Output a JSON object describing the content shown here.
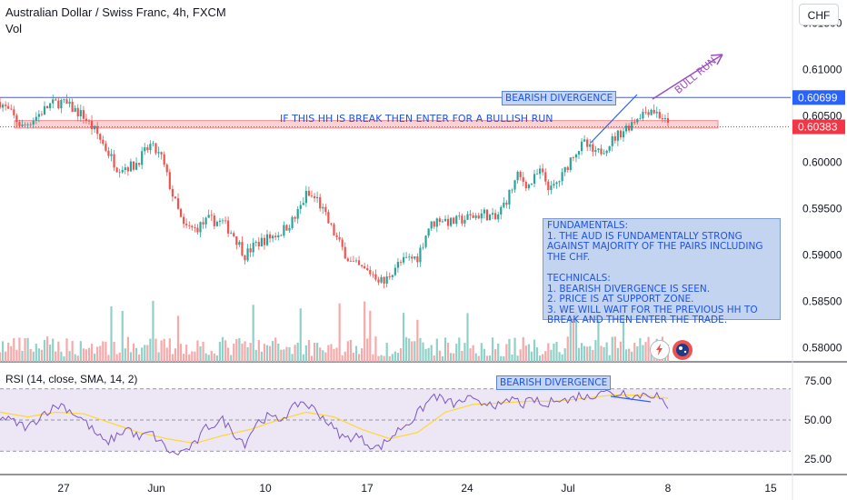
{
  "header": {
    "title": "Australian Dollar / Swiss Franc, 4h, FXCM",
    "volume_label": "Vol",
    "rsi_label": "RSI (14, close, SMA, 14, 2)",
    "currency_button": "CHF"
  },
  "annotations": {
    "bearish_divergence_price": "BEARISH DIVERGENCE",
    "bearish_divergence_rsi": "BEARISH DIVERGENCE",
    "hh_note": "IF THIS HH IS BREAK THEN ENTER FOR A BULLISH RUN",
    "bull_run": "BULL RUN",
    "notes": "FUNDAMENTALS:\n1. THE AUD IS FUNDAMENTALLY STRONG AGAINST MAJORITY OF THE PAIRS INCLUDING THE CHF.\n\nTECHNICALS:\n1. BEARISH DIVERGENCE IS SEEN.\n2. PRICE IS AT SUPPORT ZONE.\n3. WE WILL WAIT FOR THE PREVIOUS HH TO BREAK AND THEN ENTER THE TRADE."
  },
  "colors": {
    "up": "#26a69a",
    "down": "#ef5350",
    "vol_up": "#8fd1c8",
    "vol_down": "#f5a9a8",
    "rsi_line": "#7e57c2",
    "rsi_ma": "#fdd835",
    "rsi_band": "#ece6f5",
    "resistance": "#2962ff",
    "support_zone": "#f8c7c9",
    "annotation": "#1e53e5",
    "arrow": "#9c4fc4",
    "last_price": "#f23645"
  },
  "chart_data": [
    {
      "type": "candlestick",
      "title": "Australian Dollar / Swiss Franc, 4h, FXCM",
      "x_ticks": [
        "27",
        "Jun",
        "10",
        "17",
        "24",
        "Jul",
        "8",
        "15"
      ],
      "y_ticks": [
        0.615,
        0.61,
        0.605,
        0.6,
        0.595,
        0.59,
        0.585,
        0.58
      ],
      "ylim": [
        0.5785,
        0.6175
      ],
      "resistance_level": 0.60699,
      "last_price": 0.60383,
      "support_zone": [
        0.6037,
        0.6045
      ],
      "anchors": [
        [
          0,
          0.6065
        ],
        [
          4,
          0.6052
        ],
        [
          8,
          0.6038
        ],
        [
          12,
          0.6047
        ],
        [
          18,
          0.6062
        ],
        [
          22,
          0.6065
        ],
        [
          26,
          0.6058
        ],
        [
          30,
          0.605
        ],
        [
          35,
          0.603
        ],
        [
          42,
          0.5995
        ],
        [
          48,
          0.5996
        ],
        [
          54,
          0.6018
        ],
        [
          58,
          0.6005
        ],
        [
          62,
          0.5965
        ],
        [
          66,
          0.593
        ],
        [
          70,
          0.5928
        ],
        [
          75,
          0.5938
        ],
        [
          80,
          0.5935
        ],
        [
          84,
          0.5922
        ],
        [
          88,
          0.59
        ],
        [
          92,
          0.5912
        ],
        [
          96,
          0.5918
        ],
        [
          101,
          0.5925
        ],
        [
          106,
          0.594
        ],
        [
          110,
          0.5965
        ],
        [
          114,
          0.596
        ],
        [
          118,
          0.5935
        ],
        [
          122,
          0.5912
        ],
        [
          126,
          0.5892
        ],
        [
          130,
          0.5885
        ],
        [
          134,
          0.588
        ],
        [
          138,
          0.587
        ],
        [
          142,
          0.5888
        ],
        [
          146,
          0.5895
        ],
        [
          150,
          0.5898
        ],
        [
          154,
          0.593
        ],
        [
          158,
          0.594
        ],
        [
          162,
          0.5935
        ],
        [
          168,
          0.594
        ],
        [
          174,
          0.5945
        ],
        [
          178,
          0.5938
        ],
        [
          182,
          0.596
        ],
        [
          186,
          0.5985
        ],
        [
          190,
          0.5975
        ],
        [
          194,
          0.599
        ],
        [
          198,
          0.597
        ],
        [
          202,
          0.5985
        ],
        [
          206,
          0.601
        ],
        [
          210,
          0.602
        ],
        [
          214,
          0.6008
        ],
        [
          218,
          0.6018
        ],
        [
          222,
          0.603
        ],
        [
          226,
          0.604
        ],
        [
          230,
          0.6052
        ],
        [
          234,
          0.6058
        ],
        [
          238,
          0.6048
        ],
        [
          240,
          0.6039
        ]
      ]
    },
    {
      "type": "line",
      "title": "RSI (14, close, SMA, 14, 2)",
      "y_ticks": [
        75,
        50,
        25
      ],
      "ylim": [
        15,
        85
      ],
      "band": [
        30,
        70
      ],
      "series": [
        {
          "anchors": [
            [
              0,
              52
            ],
            [
              6,
              48
            ],
            [
              10,
              45
            ],
            [
              16,
              55
            ],
            [
              22,
              60
            ],
            [
              26,
              55
            ],
            [
              30,
              50
            ],
            [
              34,
              42
            ],
            [
              38,
              35
            ],
            [
              42,
              40
            ],
            [
              46,
              45
            ],
            [
              50,
              38
            ],
            [
              54,
              42
            ],
            [
              58,
              35
            ],
            [
              62,
              28
            ],
            [
              66,
              30
            ],
            [
              70,
              34
            ],
            [
              74,
              45
            ],
            [
              80,
              50
            ],
            [
              84,
              42
            ],
            [
              88,
              35
            ],
            [
              92,
              48
            ],
            [
              96,
              52
            ],
            [
              100,
              50
            ],
            [
              104,
              55
            ],
            [
              108,
              62
            ],
            [
              112,
              58
            ],
            [
              116,
              52
            ],
            [
              120,
              44
            ],
            [
              124,
              38
            ],
            [
              128,
              40
            ],
            [
              132,
              35
            ],
            [
              136,
              32
            ],
            [
              140,
              38
            ],
            [
              144,
              45
            ],
            [
              148,
              50
            ],
            [
              152,
              58
            ],
            [
              156,
              66
            ],
            [
              160,
              62
            ],
            [
              164,
              60
            ],
            [
              168,
              64
            ],
            [
              172,
              60
            ],
            [
              176,
              62
            ],
            [
              180,
              58
            ],
            [
              184,
              64
            ],
            [
              188,
              60
            ],
            [
              192,
              63
            ],
            [
              196,
              58
            ],
            [
              200,
              65
            ],
            [
              204,
              62
            ],
            [
              208,
              66
            ],
            [
              212,
              64
            ],
            [
              216,
              70
            ],
            [
              220,
              66
            ],
            [
              224,
              68
            ],
            [
              228,
              65
            ],
            [
              232,
              67
            ],
            [
              236,
              66
            ],
            [
              240,
              56
            ]
          ]
        },
        {
          "anchors": [
            [
              0,
              55
            ],
            [
              10,
              52
            ],
            [
              20,
              55
            ],
            [
              30,
              54
            ],
            [
              40,
              48
            ],
            [
              50,
              42
            ],
            [
              60,
              38
            ],
            [
              70,
              35
            ],
            [
              80,
              40
            ],
            [
              90,
              44
            ],
            [
              100,
              50
            ],
            [
              110,
              55
            ],
            [
              120,
              52
            ],
            [
              130,
              44
            ],
            [
              140,
              38
            ],
            [
              150,
              42
            ],
            [
              160,
              55
            ],
            [
              170,
              60
            ],
            [
              180,
              61
            ],
            [
              190,
              62
            ],
            [
              200,
              62
            ],
            [
              210,
              64
            ],
            [
              220,
              66
            ],
            [
              230,
              66
            ],
            [
              240,
              64
            ]
          ]
        }
      ]
    }
  ]
}
